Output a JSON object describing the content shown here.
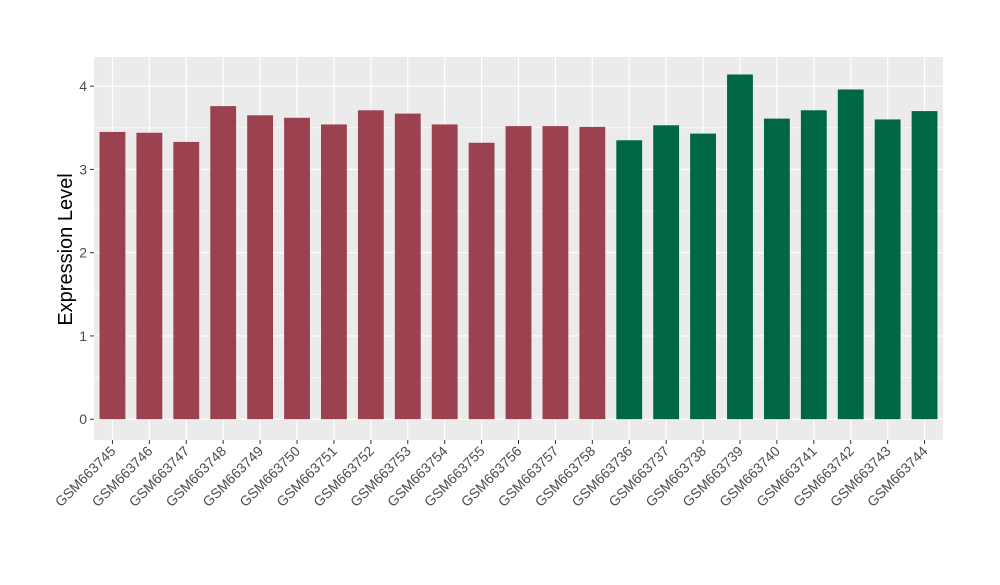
{
  "chart_data": {
    "type": "bar",
    "title": "",
    "xlabel": "",
    "ylabel": "Expression Level",
    "ylim": [
      -0.25,
      4.35
    ],
    "yticks": [
      0,
      1,
      2,
      3,
      4
    ],
    "grid": true,
    "categories": [
      "GSM663745",
      "GSM663746",
      "GSM663747",
      "GSM663748",
      "GSM663749",
      "GSM663750",
      "GSM663751",
      "GSM663752",
      "GSM663753",
      "GSM663754",
      "GSM663755",
      "GSM663756",
      "GSM663757",
      "GSM663758",
      "GSM663736",
      "GSM663737",
      "GSM663738",
      "GSM663739",
      "GSM663740",
      "GSM663741",
      "GSM663742",
      "GSM663743",
      "GSM663744"
    ],
    "values": [
      3.45,
      3.44,
      3.33,
      3.76,
      3.65,
      3.62,
      3.54,
      3.71,
      3.67,
      3.54,
      3.32,
      3.52,
      3.52,
      3.51,
      3.35,
      3.53,
      3.43,
      4.14,
      3.61,
      3.71,
      3.96,
      3.6,
      3.7
    ],
    "group_sizes": [
      14,
      9
    ],
    "colors": [
      "#9b4150",
      "#006745"
    ],
    "panel_background": "#ebebeb",
    "gridline_color": "#ffffff"
  }
}
